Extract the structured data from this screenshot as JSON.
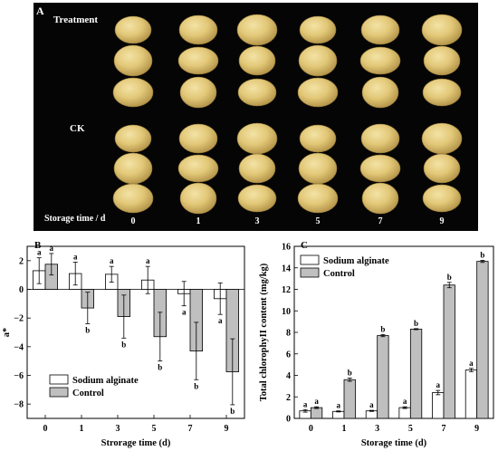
{
  "panel_a": {
    "label": "A",
    "treatment_label": "Treatment",
    "ck_label": "CK",
    "storage_label": "Storage time / d",
    "days": [
      "0",
      "1",
      "3",
      "5",
      "7",
      "9"
    ]
  },
  "chart_data": [
    {
      "type": "bar",
      "panel_label": "B",
      "categories": [
        "0",
        "1",
        "3",
        "5",
        "7",
        "9"
      ],
      "series": [
        {
          "name": "Sodium alginate",
          "values": [
            1.3,
            1.1,
            1.05,
            0.65,
            -0.3,
            -0.65
          ],
          "errors": [
            0.9,
            0.8,
            0.55,
            0.95,
            0.85,
            1.1
          ],
          "letters": [
            "a",
            "a",
            "a",
            "a",
            "a",
            "a"
          ],
          "color": "#ffffff"
        },
        {
          "name": "Control",
          "values": [
            1.75,
            -1.3,
            -1.9,
            -3.3,
            -4.3,
            -5.75
          ],
          "errors": [
            0.75,
            1.1,
            1.5,
            1.7,
            2.0,
            2.3
          ],
          "letters": [
            "a",
            "b",
            "b",
            "b",
            "b",
            "b"
          ],
          "color": "#bfbfbf"
        }
      ],
      "xlabel": "Strorage time (d)",
      "ylabel": "a*",
      "ylim": [
        -9,
        3
      ],
      "yticks": [
        -8,
        -6,
        -4,
        -2,
        0,
        2
      ],
      "legend": "bottom-left",
      "grid": false
    },
    {
      "type": "bar",
      "panel_label": "C",
      "categories": [
        "0",
        "1",
        "3",
        "5",
        "7",
        "9"
      ],
      "series": [
        {
          "name": "Sodium alginate",
          "values": [
            0.7,
            0.65,
            0.7,
            1.0,
            2.4,
            4.5
          ],
          "errors": [
            0.12,
            0.05,
            0.05,
            0.08,
            0.2,
            0.15
          ],
          "letters": [
            "a",
            "a",
            "a",
            "a",
            "a",
            "a"
          ],
          "color": "#ffffff"
        },
        {
          "name": "Control",
          "values": [
            1.0,
            3.6,
            7.7,
            8.3,
            12.4,
            14.6
          ],
          "errors": [
            0.08,
            0.15,
            0.1,
            0.05,
            0.25,
            0.1
          ],
          "letters": [
            "a",
            "b",
            "b",
            "b",
            "b",
            "b"
          ],
          "color": "#bfbfbf"
        }
      ],
      "xlabel": "Storage time (d)",
      "ylabel": "Total chlorophyII content (mg/kg)",
      "ylim": [
        0,
        16
      ],
      "yticks": [
        0,
        2,
        4,
        6,
        8,
        10,
        12,
        14,
        16
      ],
      "legend": "top-left",
      "grid": false
    }
  ]
}
